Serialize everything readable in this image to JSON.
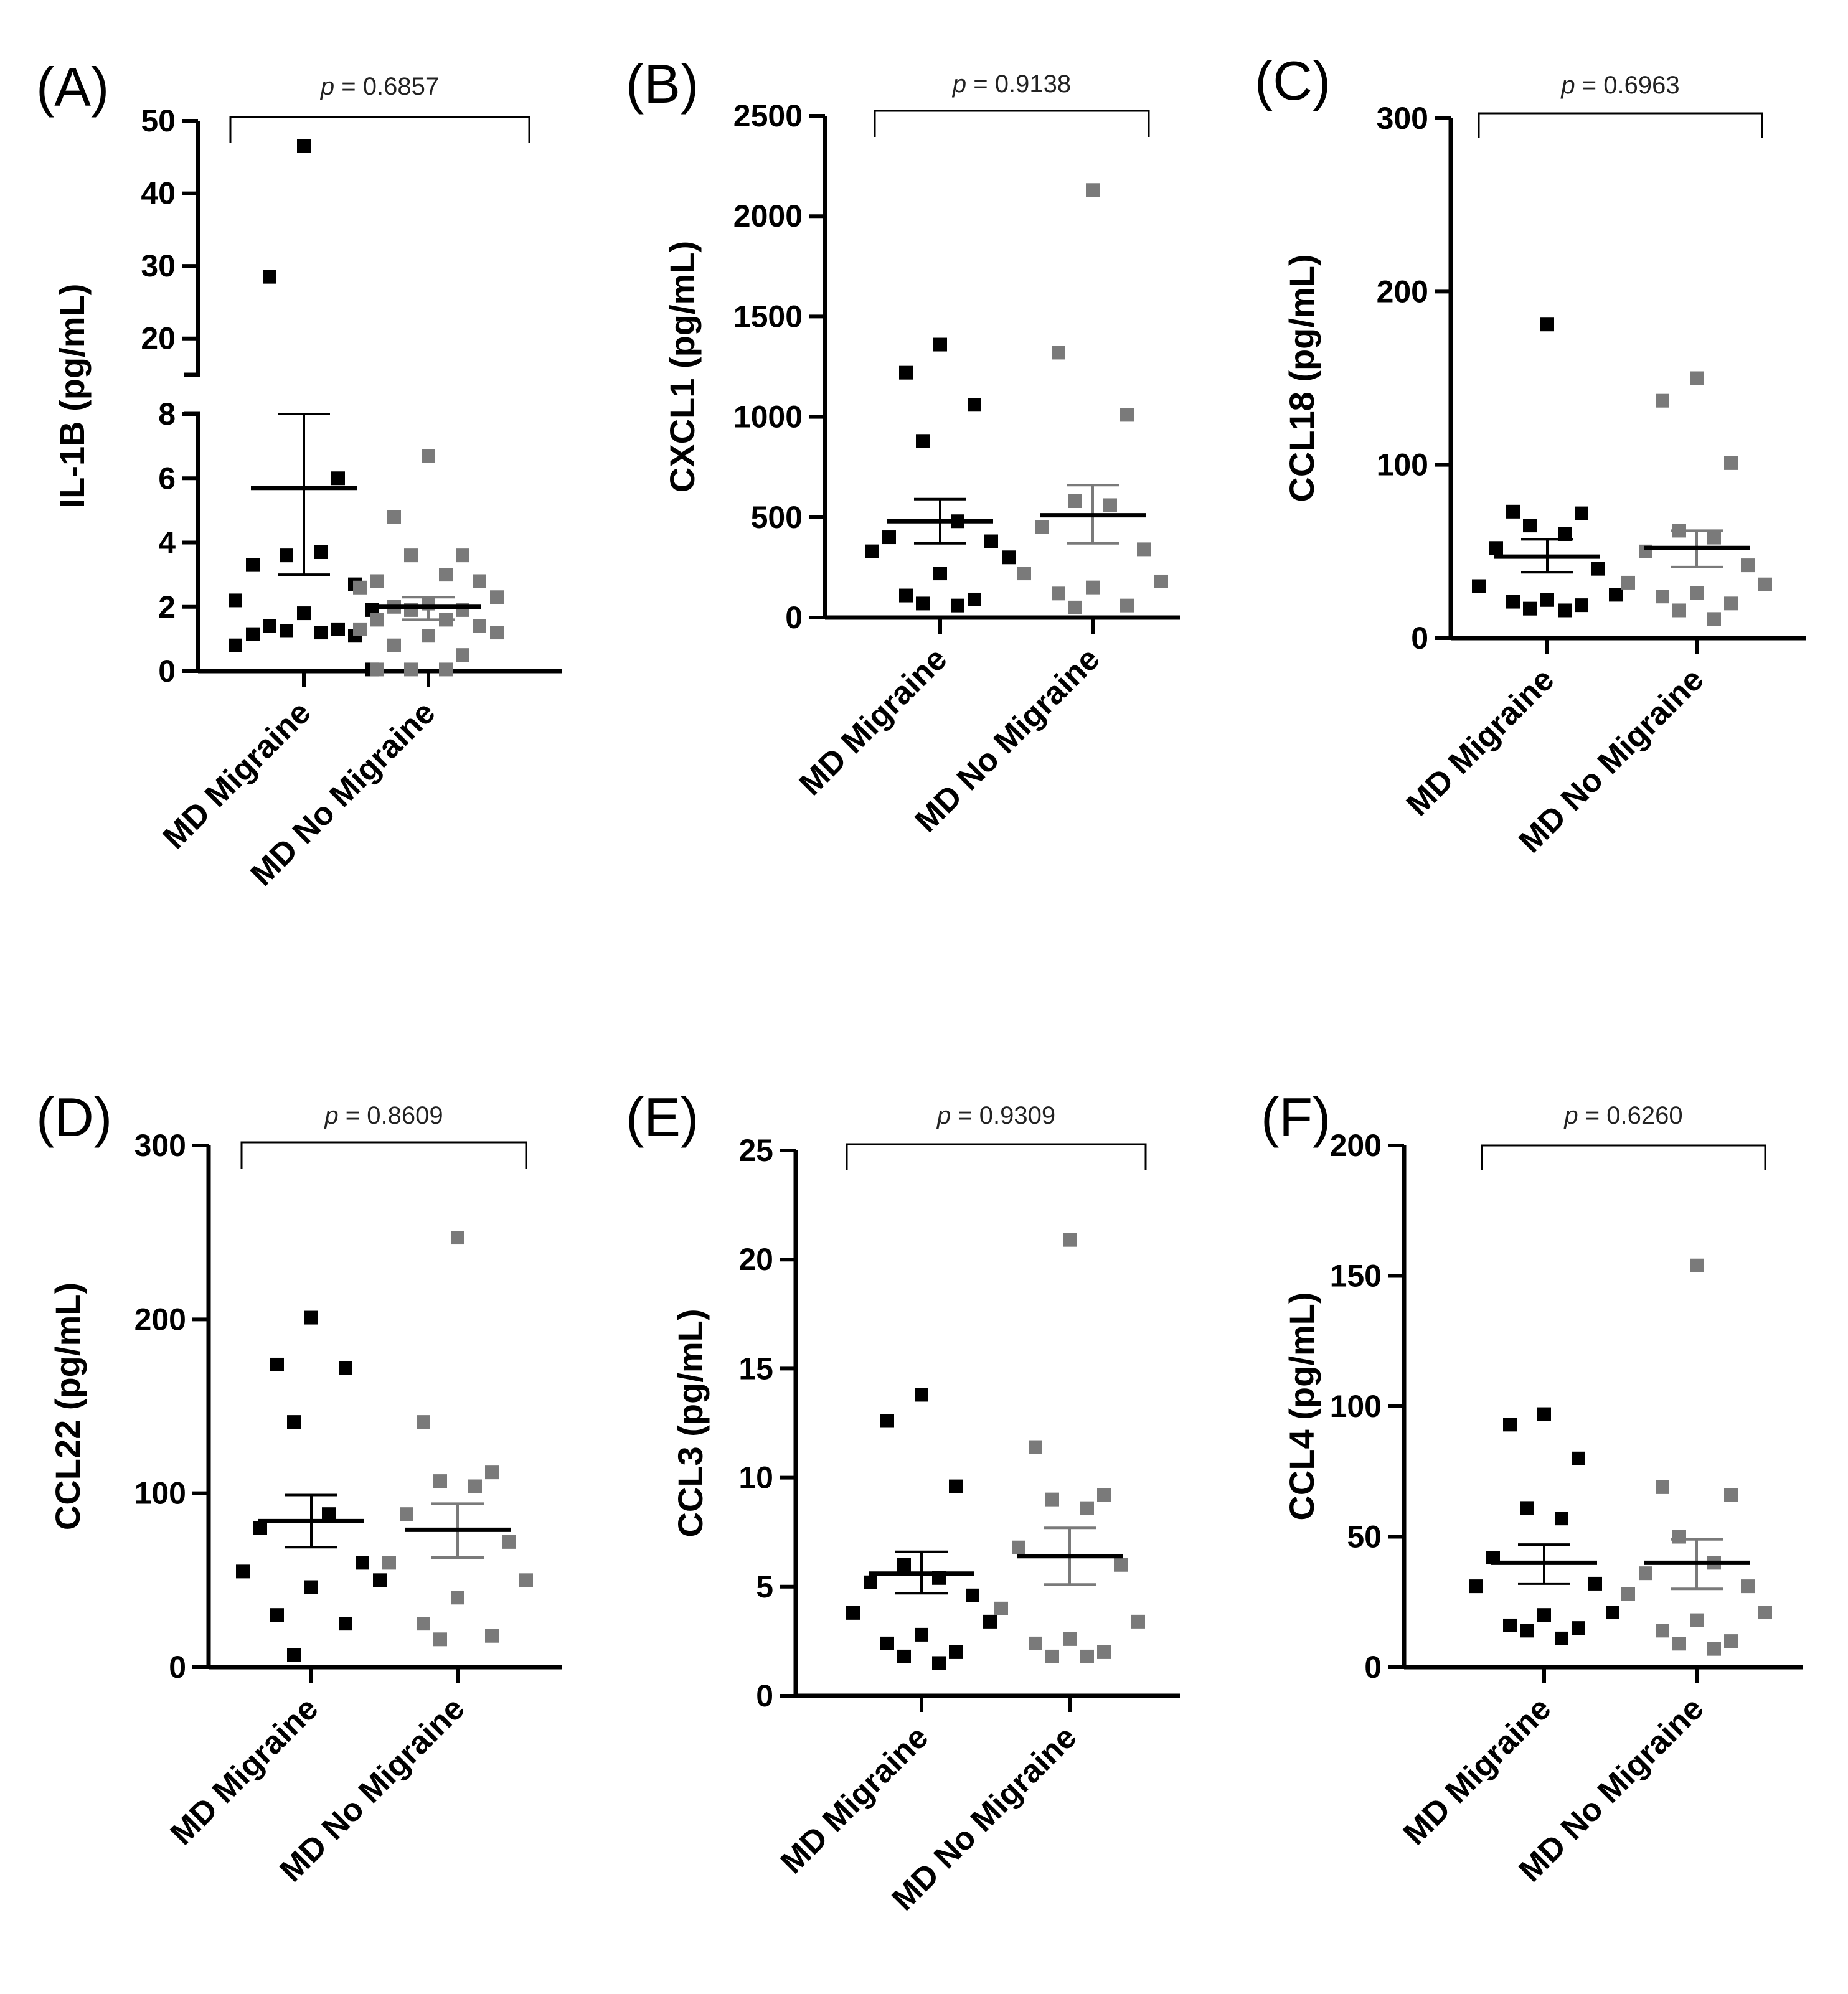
{
  "chart_data": [
    {
      "panel": "(A)",
      "type": "scatter",
      "ylabel": "IL-1B (pg/mL)",
      "categories": [
        "MD Migraine",
        "MD No Migraine"
      ],
      "p_prefix": "p",
      "p_value": " = 0.6857",
      "axis_break": {
        "lower": [
          0,
          8
        ],
        "upper": [
          15,
          50
        ]
      },
      "yticks": [
        0,
        2,
        4,
        6,
        8,
        20,
        30,
        40,
        50
      ],
      "series": [
        {
          "name": "MD Migraine",
          "color": "#000000",
          "values": [
            46.5,
            28.5,
            6.0,
            3.6,
            3.7,
            3.3,
            2.7,
            2.2,
            1.9,
            1.8,
            1.4,
            1.3,
            1.25,
            1.2,
            1.15,
            1.1,
            0.8,
            0.05
          ],
          "mean": 5.7,
          "sem_low": 3.0,
          "sem_high": 8.0
        },
        {
          "name": "MD No Migraine",
          "color": "#7a7a7a",
          "values": [
            6.7,
            4.8,
            3.6,
            3.6,
            3.0,
            2.8,
            2.8,
            2.6,
            2.3,
            2.1,
            2.0,
            1.9,
            1.9,
            1.6,
            1.6,
            1.4,
            1.3,
            1.2,
            1.1,
            0.8,
            0.5,
            0.05,
            0.05,
            0.05
          ],
          "mean": 2.0,
          "sem_low": 1.6,
          "sem_high": 2.3
        }
      ]
    },
    {
      "panel": "(B)",
      "type": "scatter",
      "ylabel": "CXCL1 (pg/mL)",
      "categories": [
        "MD Migraine",
        "MD No Migraine"
      ],
      "p_prefix": "p",
      "p_value": " = 0.9138",
      "ylim": [
        0,
        2500
      ],
      "yticks": [
        0,
        500,
        1000,
        1500,
        2000,
        2500
      ],
      "series": [
        {
          "name": "MD Migraine",
          "color": "#000000",
          "values": [
            1360,
            1220,
            1060,
            880,
            480,
            400,
            380,
            330,
            300,
            220,
            110,
            90,
            70,
            60
          ],
          "mean": 480,
          "sem_low": 370,
          "sem_high": 590
        },
        {
          "name": "MD No Migraine",
          "color": "#7a7a7a",
          "values": [
            2130,
            1320,
            1010,
            580,
            560,
            450,
            340,
            220,
            180,
            150,
            120,
            60,
            50
          ],
          "mean": 510,
          "sem_low": 370,
          "sem_high": 660
        }
      ]
    },
    {
      "panel": "(C)",
      "type": "scatter",
      "ylabel": "CCL18 (pg/mL)",
      "categories": [
        "MD Migraine",
        "MD No Migraine"
      ],
      "p_prefix": "p",
      "p_value": " = 0.6963",
      "ylim": [
        0,
        300
      ],
      "yticks": [
        0,
        100,
        200,
        300
      ],
      "series": [
        {
          "name": "MD Migraine",
          "color": "#000000",
          "values": [
            181,
            73,
            72,
            65,
            60,
            52,
            40,
            30,
            25,
            22,
            21,
            19,
            17,
            16
          ],
          "mean": 47,
          "sem_low": 38,
          "sem_high": 57
        },
        {
          "name": "MD No Migraine",
          "color": "#7a7a7a",
          "values": [
            150,
            137,
            101,
            62,
            58,
            50,
            42,
            32,
            31,
            26,
            24,
            20,
            16,
            11
          ],
          "mean": 52,
          "sem_low": 41,
          "sem_high": 62
        }
      ]
    },
    {
      "panel": "(D)",
      "type": "scatter",
      "ylabel": "CCL22 (pg/mL)",
      "categories": [
        "MD Migraine",
        "MD No Migraine"
      ],
      "p_prefix": "p",
      "p_value": " = 0.8609",
      "ylim": [
        0,
        300
      ],
      "yticks": [
        0,
        100,
        200,
        300
      ],
      "series": [
        {
          "name": "MD Migraine",
          "color": "#000000",
          "values": [
            201,
            174,
            172,
            141,
            88,
            80,
            60,
            55,
            50,
            46,
            30,
            25,
            7
          ],
          "mean": 84,
          "sem_low": 69,
          "sem_high": 99
        },
        {
          "name": "MD No Migraine",
          "color": "#7a7a7a",
          "values": [
            247,
            141,
            112,
            107,
            104,
            88,
            72,
            60,
            50,
            40,
            25,
            18,
            16
          ],
          "mean": 79,
          "sem_low": 63,
          "sem_high": 94
        }
      ]
    },
    {
      "panel": "(E)",
      "type": "scatter",
      "ylabel": "CCL3 (pg/mL)",
      "categories": [
        "MD Migraine",
        "MD No Migraine"
      ],
      "p_prefix": "p",
      "p_value": " = 0.9309",
      "ylim": [
        0,
        25
      ],
      "yticks": [
        0,
        5,
        10,
        15,
        20,
        25
      ],
      "series": [
        {
          "name": "MD Migraine",
          "color": "#000000",
          "values": [
            13.8,
            12.6,
            9.6,
            6.0,
            5.4,
            5.2,
            4.6,
            3.8,
            3.4,
            2.8,
            2.4,
            2.0,
            1.8,
            1.5
          ],
          "mean": 5.6,
          "sem_low": 4.7,
          "sem_high": 6.6
        },
        {
          "name": "MD No Migraine",
          "color": "#7a7a7a",
          "values": [
            20.9,
            11.4,
            9.2,
            9.0,
            8.6,
            6.8,
            6.0,
            4.0,
            3.4,
            2.6,
            2.4,
            2.0,
            1.8,
            1.8
          ],
          "mean": 6.4,
          "sem_low": 5.1,
          "sem_high": 7.7
        }
      ]
    },
    {
      "panel": "(F)",
      "type": "scatter",
      "ylabel": "CCL4 (pg/mL)",
      "categories": [
        "MD Migraine",
        "MD No Migraine"
      ],
      "p_prefix": "p",
      "p_value": " = 0.6260",
      "ylim": [
        0,
        200
      ],
      "yticks": [
        0,
        50,
        100,
        150,
        200
      ],
      "series": [
        {
          "name": "MD Migraine",
          "color": "#000000",
          "values": [
            97,
            93,
            80,
            61,
            57,
            42,
            32,
            31,
            21,
            20,
            16,
            15,
            14,
            11
          ],
          "mean": 40,
          "sem_low": 32,
          "sem_high": 47
        },
        {
          "name": "MD No Migraine",
          "color": "#7a7a7a",
          "values": [
            154,
            69,
            66,
            50,
            40,
            36,
            31,
            28,
            21,
            18,
            14,
            10,
            9,
            7
          ],
          "mean": 40,
          "sem_low": 30,
          "sem_high": 49
        }
      ]
    }
  ]
}
